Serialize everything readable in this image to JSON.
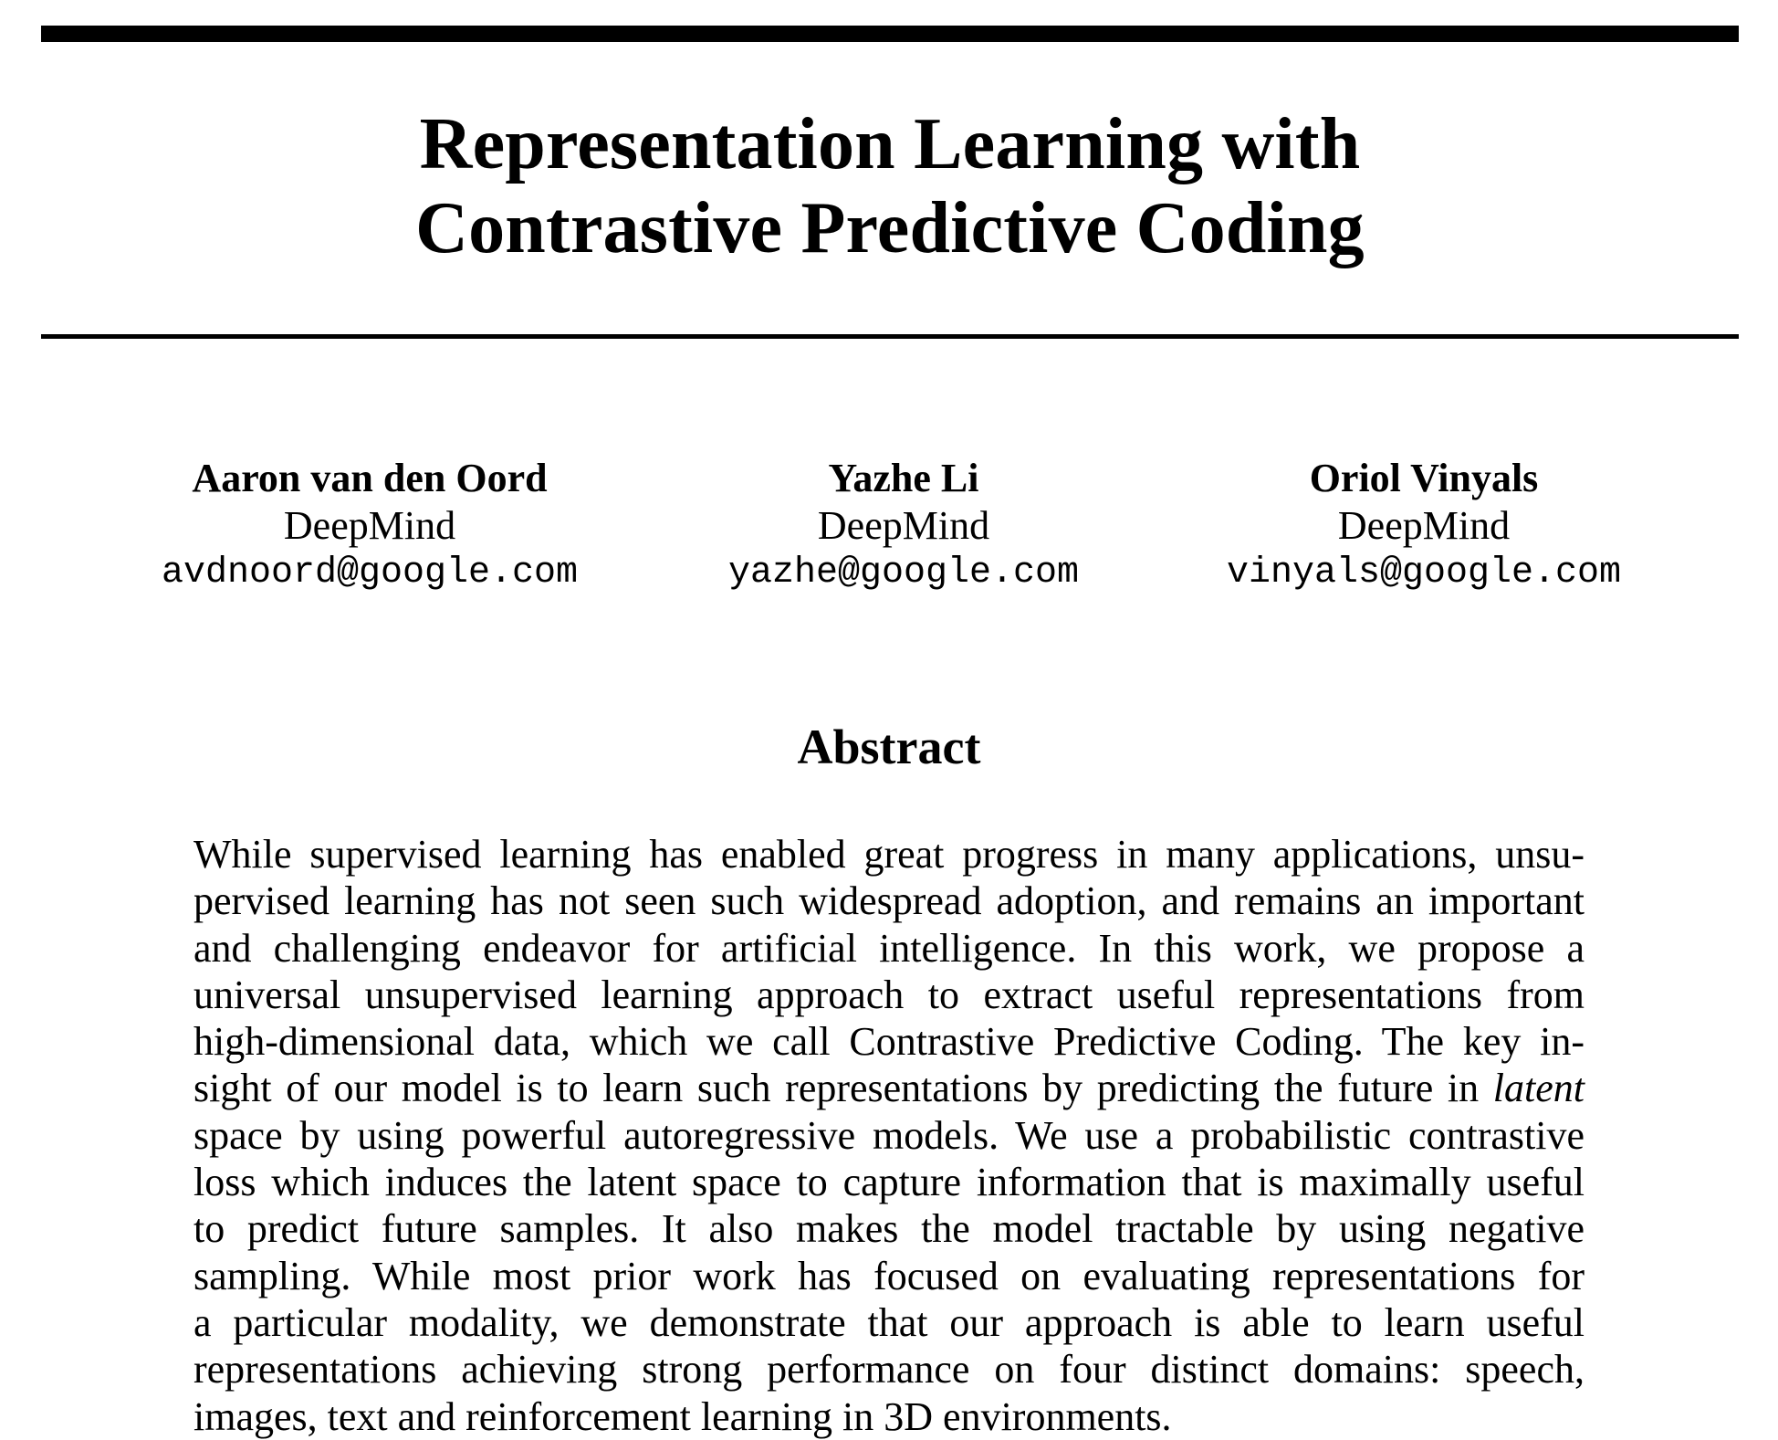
{
  "paper": {
    "title_lines": [
      "Representation Learning with",
      "Contrastive Predictive Coding"
    ],
    "authors": [
      {
        "name": "Aaron van den Oord",
        "affiliation": "DeepMind",
        "email": "avdnoord@google.com"
      },
      {
        "name": "Yazhe Li",
        "affiliation": "DeepMind",
        "email": "yazhe@google.com"
      },
      {
        "name": "Oriol Vinyals",
        "affiliation": "DeepMind",
        "email": "vinyals@google.com"
      }
    ],
    "abstract_heading": "Abstract",
    "abstract_lines": [
      "While supervised learning has enabled great progress in many applications, unsu-",
      "pervised learning has not seen such widespread adoption, and remains an important",
      "and challenging endeavor for artificial intelligence.  In this work, we propose a",
      "universal unsupervised learning approach to extract useful representations from",
      "high-dimensional data, which we call Contrastive Predictive Coding. The key in-",
      [
        "sight of our model is to learn such representations by predicting the future in ",
        "latent"
      ],
      "space by using powerful autoregressive models. We use a probabilistic contrastive",
      "loss which induces the latent space to capture information that is maximally useful",
      "to predict future samples.  It also makes the model tractable by using negative",
      "sampling. While most prior work has focused on evaluating representations for",
      "a particular modality, we demonstrate that our approach is able to learn useful",
      "representations achieving strong performance on four distinct domains: speech,",
      "images, text and reinforcement learning in 3D environments."
    ]
  }
}
